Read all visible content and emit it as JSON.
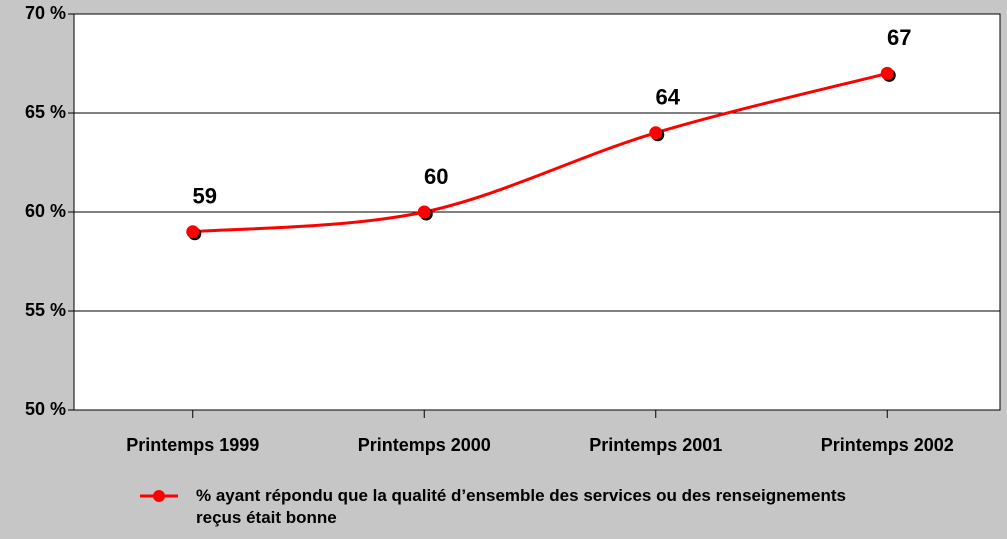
{
  "chart_data": {
    "type": "line",
    "categories": [
      "Printemps 1999",
      "Printemps 2000",
      "Printemps 2001",
      "Printemps 2002"
    ],
    "series": [
      {
        "name": "% ayant répondu que la qualité d’ensemble des services ou des renseignements reçus était bonne",
        "color": "#ff0000",
        "values": [
          59,
          60,
          64,
          67
        ]
      }
    ],
    "ylim": [
      50,
      70
    ],
    "yticks": [
      {
        "value": 50,
        "label": "50 %"
      },
      {
        "value": 55,
        "label": "55 %"
      },
      {
        "value": 60,
        "label": "60 %"
      },
      {
        "value": 65,
        "label": "65 %"
      },
      {
        "value": 70,
        "label": "70 %"
      }
    ],
    "grid": true,
    "legend": "bottom"
  }
}
